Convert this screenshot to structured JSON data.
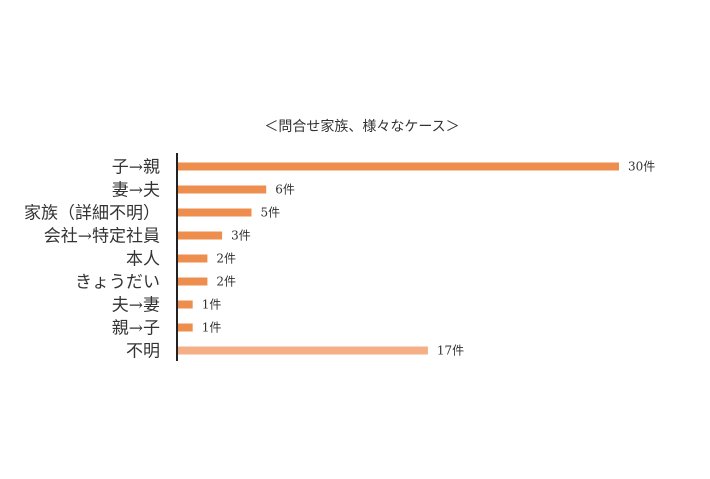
{
  "chart_data": {
    "type": "bar",
    "orientation": "horizontal",
    "title": "＜問合せ家族、様々なケース＞",
    "categories": [
      "子→親",
      "妻→夫",
      "家族（詳細不明）",
      "会社→特定社員",
      "本人",
      "きょうだい",
      "夫→妻",
      "親→子",
      "不明"
    ],
    "values": [
      30,
      6,
      5,
      3,
      2,
      2,
      1,
      1,
      17
    ],
    "data_labels": [
      "30件",
      "6件",
      "5件",
      "3件",
      "2件",
      "2件",
      "1件",
      "1件",
      "17件"
    ],
    "bar_colors": [
      "#ED8E4E",
      "#ED8E4E",
      "#ED8E4E",
      "#ED8E4E",
      "#ED8E4E",
      "#ED8E4E",
      "#ED8E4E",
      "#ED8E4E",
      "#F4AF87"
    ],
    "xlim": [
      0,
      30
    ],
    "grid": false,
    "legend": "none"
  },
  "colors": {
    "bar": "#ED8E4E",
    "bar_unknown": "#F4AF87",
    "axis": "#222222",
    "text": "#333333"
  }
}
